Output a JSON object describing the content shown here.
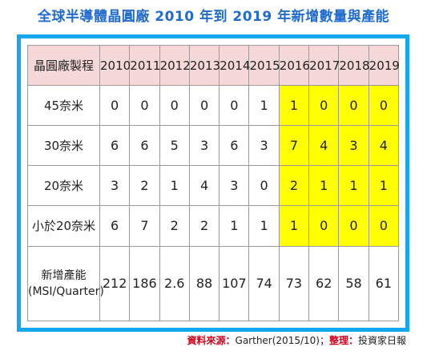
{
  "title": "全球半導體晶圓廠 2010 年到 2019 年新增數量與產能",
  "table": {
    "corner": "晶圓廠製程",
    "years": [
      "2010",
      "2011",
      "2012",
      "2013",
      "2014",
      "2015",
      "2016",
      "2017",
      "2018",
      "2019"
    ],
    "rows": [
      {
        "label": "45奈米",
        "values": [
          "0",
          "0",
          "0",
          "0",
          "0",
          "1",
          "1",
          "0",
          "0",
          "0"
        ]
      },
      {
        "label": "30奈米",
        "values": [
          "6",
          "6",
          "5",
          "3",
          "6",
          "3",
          "7",
          "4",
          "3",
          "4"
        ]
      },
      {
        "label": "20奈米",
        "values": [
          "3",
          "2",
          "1",
          "4",
          "3",
          "0",
          "2",
          "1",
          "1",
          "1"
        ]
      },
      {
        "label": "小於20奈米",
        "values": [
          "6",
          "7",
          "2",
          "2",
          "1",
          "1",
          "1",
          "0",
          "0",
          "0"
        ]
      }
    ],
    "capacity_label_line1": "新增產能",
    "capacity_label_line2": "(MSI/Quarter)",
    "capacity_values": [
      "212",
      "186",
      "2.6",
      "88",
      "107",
      "74",
      "73",
      "62",
      "58",
      "61"
    ],
    "header_color": "#f7d8d8",
    "highlight_color": "#ffff00",
    "highlight_years": [
      "2016",
      "2017",
      "2018",
      "2019"
    ]
  },
  "source": {
    "label1": "資料來源：",
    "text1": "Garther(2015/10)；",
    "label2": "整理：",
    "text2": "投資家日報"
  }
}
